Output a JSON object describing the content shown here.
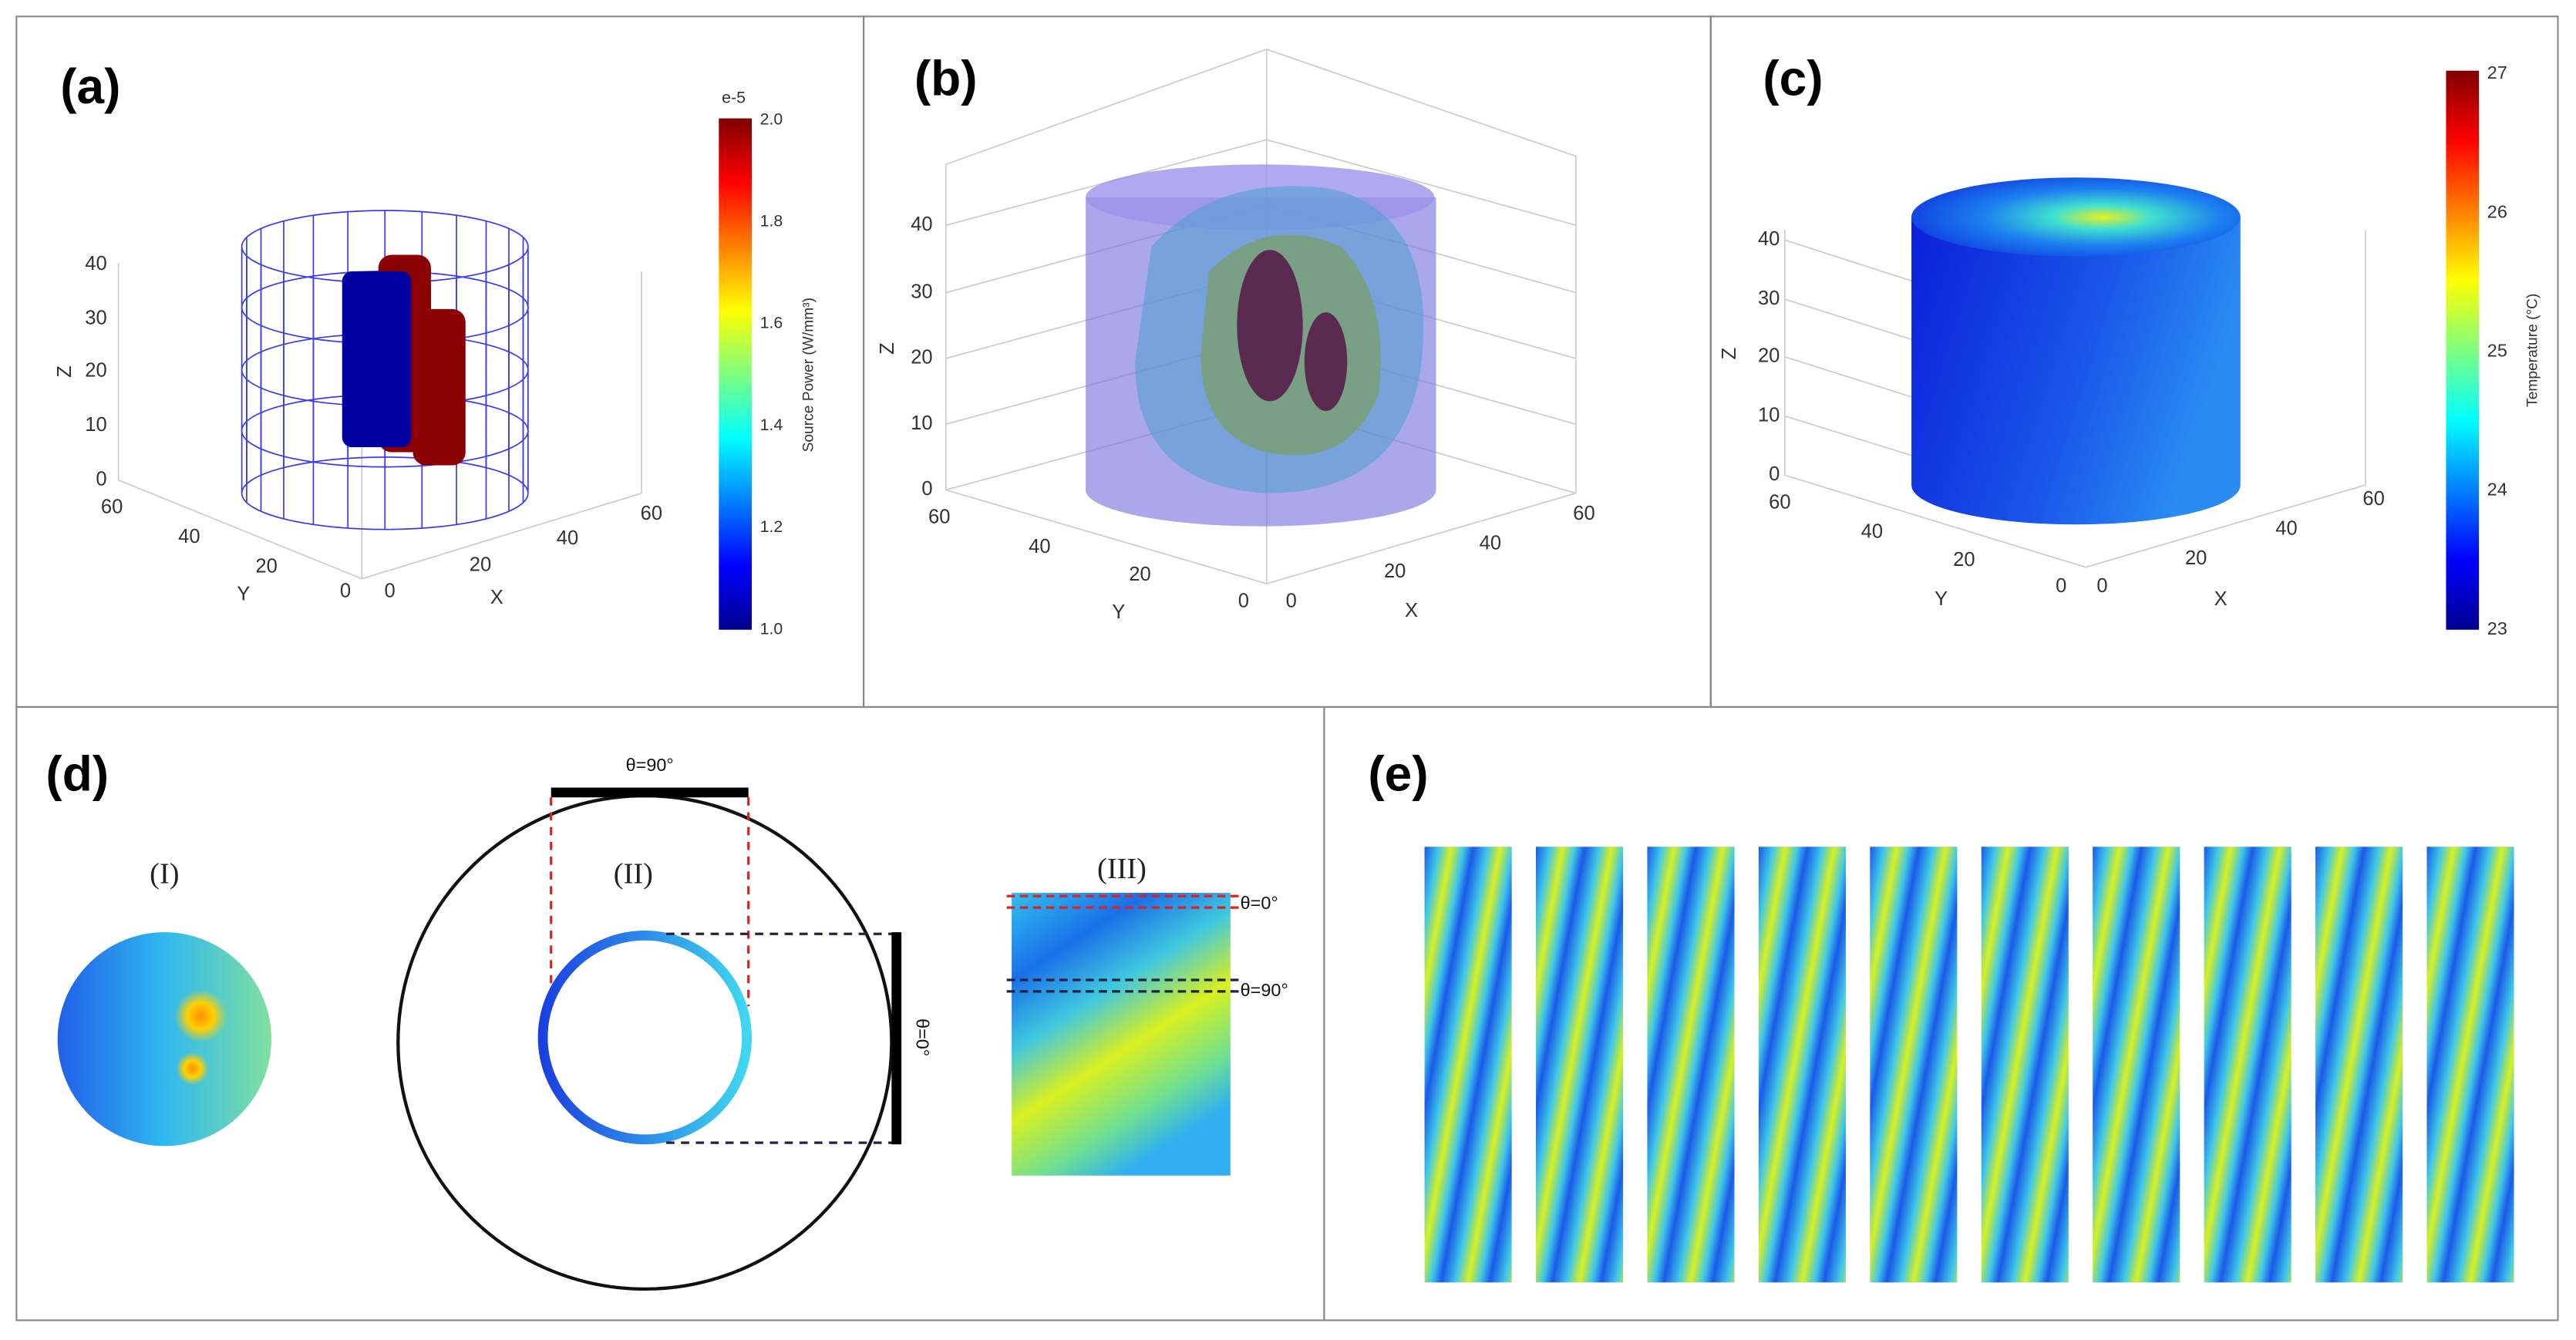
{
  "panels": {
    "a": {
      "label": "(a)",
      "z_ticks": [
        "0",
        "10",
        "20",
        "30",
        "40"
      ],
      "y_ticks": [
        "0",
        "20",
        "40",
        "60"
      ],
      "x_ticks": [
        "0",
        "20",
        "40",
        "60"
      ],
      "x_axis": "X",
      "y_axis": "Y",
      "z_axis": "Z",
      "colorbar": {
        "exponent": "e-5",
        "ticks": [
          "1.0",
          "1.2",
          "1.4",
          "1.6",
          "1.8",
          "2.0"
        ],
        "label": "Source Power (W/mm³)"
      }
    },
    "b": {
      "label": "(b)",
      "z_ticks": [
        "0",
        "10",
        "20",
        "30",
        "40"
      ],
      "y_ticks": [
        "0",
        "20",
        "40",
        "60"
      ],
      "x_ticks": [
        "0",
        "20",
        "40",
        "60"
      ],
      "x_axis": "X",
      "y_axis": "Y",
      "z_axis": "Z"
    },
    "c": {
      "label": "(c)",
      "z_ticks": [
        "0",
        "10",
        "20",
        "30",
        "40"
      ],
      "y_ticks": [
        "0",
        "20",
        "40",
        "60"
      ],
      "x_ticks": [
        "0",
        "20",
        "40",
        "60"
      ],
      "x_axis": "X",
      "y_axis": "Y",
      "z_axis": "Z",
      "colorbar": {
        "ticks": [
          "23",
          "24",
          "25",
          "26",
          "27"
        ],
        "label": "Temperature (°C)"
      }
    },
    "d": {
      "label": "(d)",
      "sub": [
        "(I)",
        "(II)",
        "(III)"
      ],
      "ii_top": "θ=90°",
      "ii_side": "θ=0°",
      "iii_top": "θ=0°",
      "iii_mid": "θ=90°"
    },
    "e": {
      "label": "(e)"
    }
  }
}
